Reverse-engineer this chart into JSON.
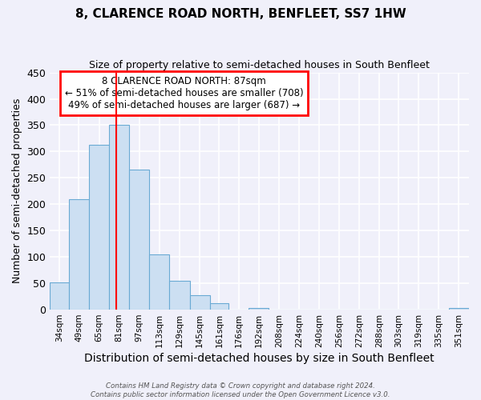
{
  "title": "8, CLARENCE ROAD NORTH, BENFLEET, SS7 1HW",
  "subtitle": "Size of property relative to semi-detached houses in South Benfleet",
  "xlabel": "Distribution of semi-detached houses by size in South Benfleet",
  "ylabel": "Number of semi-detached properties",
  "bin_labels": [
    "34sqm",
    "49sqm",
    "65sqm",
    "81sqm",
    "97sqm",
    "113sqm",
    "129sqm",
    "145sqm",
    "161sqm",
    "176sqm",
    "192sqm",
    "208sqm",
    "224sqm",
    "240sqm",
    "256sqm",
    "272sqm",
    "288sqm",
    "303sqm",
    "319sqm",
    "335sqm",
    "351sqm"
  ],
  "bin_edges": [
    34,
    49,
    65,
    81,
    97,
    113,
    129,
    145,
    161,
    176,
    192,
    208,
    224,
    240,
    256,
    272,
    288,
    303,
    319,
    335,
    351,
    367
  ],
  "bar_heights": [
    51,
    210,
    313,
    350,
    265,
    105,
    55,
    27,
    13,
    0,
    3,
    0,
    0,
    0,
    0,
    0,
    0,
    0,
    0,
    0,
    3
  ],
  "bar_color": "#ccdff2",
  "bar_edge_color": "#6aaad4",
  "property_line_x": 87,
  "property_line_color": "red",
  "annotation_title": "8 CLARENCE ROAD NORTH: 87sqm",
  "annotation_line2": "← 51% of semi-detached houses are smaller (708)",
  "annotation_line3": "49% of semi-detached houses are larger (687) →",
  "annotation_box_color": "white",
  "annotation_box_edge_color": "red",
  "ylim": [
    0,
    450
  ],
  "yticks": [
    0,
    50,
    100,
    150,
    200,
    250,
    300,
    350,
    400,
    450
  ],
  "footer_line1": "Contains HM Land Registry data © Crown copyright and database right 2024.",
  "footer_line2": "Contains public sector information licensed under the Open Government Licence v3.0.",
  "background_color": "#f0f0fa"
}
